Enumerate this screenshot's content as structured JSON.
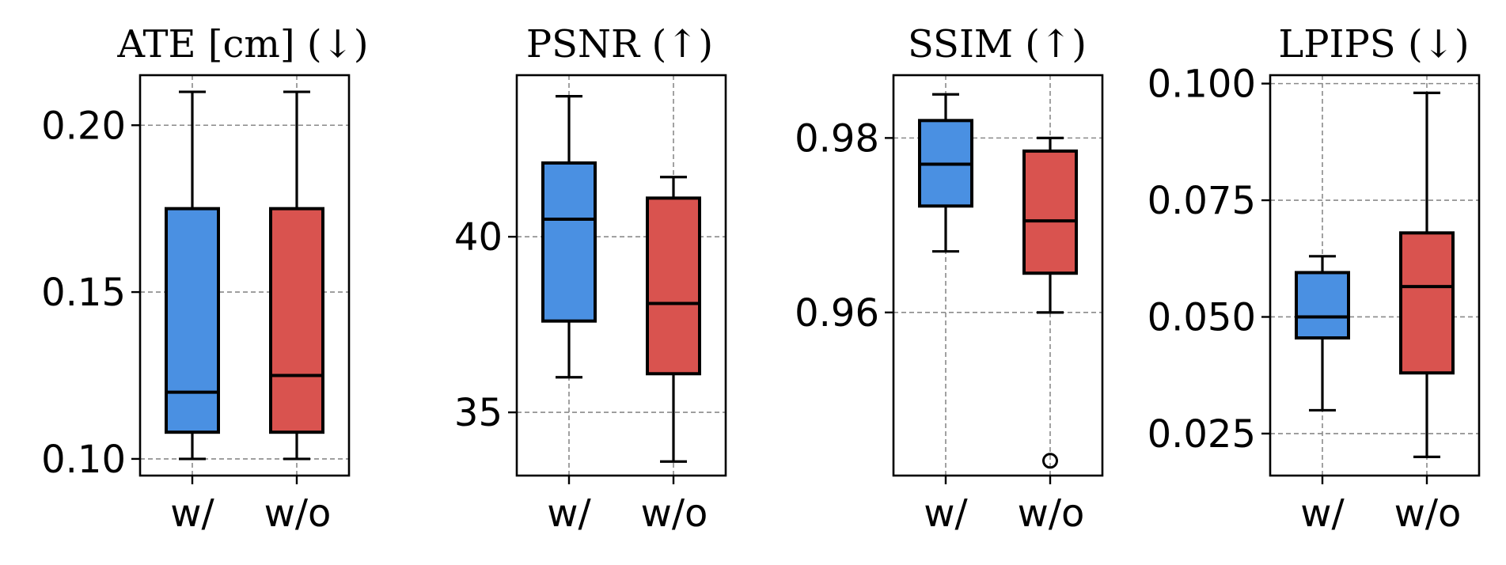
{
  "colors": {
    "with": "#4a90e2",
    "without": "#d9534f",
    "grid": "#8a8a8a",
    "frame": "#000000"
  },
  "chart_data": [
    {
      "type": "box",
      "title": "ATE [cm] (↓)",
      "categories": [
        "w/",
        "w/o"
      ],
      "ylim": [
        0.095,
        0.215
      ],
      "yticks": [
        0.1,
        0.15,
        0.2
      ],
      "ytick_labels": [
        "0.10",
        "0.15",
        "0.20"
      ],
      "series": [
        {
          "name": "w/",
          "whislo": 0.1,
          "q1": 0.108,
          "median": 0.12,
          "q3": 0.175,
          "whishi": 0.21,
          "fliers": []
        },
        {
          "name": "w/o",
          "whislo": 0.1,
          "q1": 0.108,
          "median": 0.125,
          "q3": 0.175,
          "whishi": 0.21,
          "fliers": []
        }
      ]
    },
    {
      "type": "box",
      "title": "PSNR (↑)",
      "categories": [
        "w/",
        "w/o"
      ],
      "ylim": [
        33.2,
        44.6
      ],
      "yticks": [
        35,
        40
      ],
      "ytick_labels": [
        "35",
        "40"
      ],
      "series": [
        {
          "name": "w/",
          "whislo": 36.0,
          "q1": 37.6,
          "median": 40.5,
          "q3": 42.1,
          "whishi": 44.0,
          "fliers": []
        },
        {
          "name": "w/o",
          "whislo": 33.6,
          "q1": 36.1,
          "median": 38.1,
          "q3": 41.1,
          "whishi": 41.7,
          "fliers": []
        }
      ]
    },
    {
      "type": "box",
      "title": "SSIM (↑)",
      "categories": [
        "w/",
        "w/o"
      ],
      "ylim": [
        0.9413,
        0.9872
      ],
      "yticks": [
        0.96,
        0.98
      ],
      "ytick_labels": [
        "0.96",
        "0.98"
      ],
      "series": [
        {
          "name": "w/",
          "whislo": 0.967,
          "q1": 0.9722,
          "median": 0.977,
          "q3": 0.982,
          "whishi": 0.985,
          "fliers": []
        },
        {
          "name": "w/o",
          "whislo": 0.96,
          "q1": 0.9645,
          "median": 0.9705,
          "q3": 0.9785,
          "whishi": 0.98,
          "fliers": [
            0.943
          ]
        }
      ]
    },
    {
      "type": "box",
      "title": "LPIPS (↓)",
      "categories": [
        "w/",
        "w/o"
      ],
      "ylim": [
        0.016,
        0.1018
      ],
      "yticks": [
        0.025,
        0.05,
        0.075,
        0.1
      ],
      "ytick_labels": [
        "0.025",
        "0.050",
        "0.075",
        "0.100"
      ],
      "series": [
        {
          "name": "w/",
          "whislo": 0.03,
          "q1": 0.0455,
          "median": 0.05,
          "q3": 0.0595,
          "whishi": 0.063,
          "fliers": []
        },
        {
          "name": "w/o",
          "whislo": 0.02,
          "q1": 0.038,
          "median": 0.0565,
          "q3": 0.068,
          "whishi": 0.098,
          "fliers": []
        }
      ]
    }
  ]
}
